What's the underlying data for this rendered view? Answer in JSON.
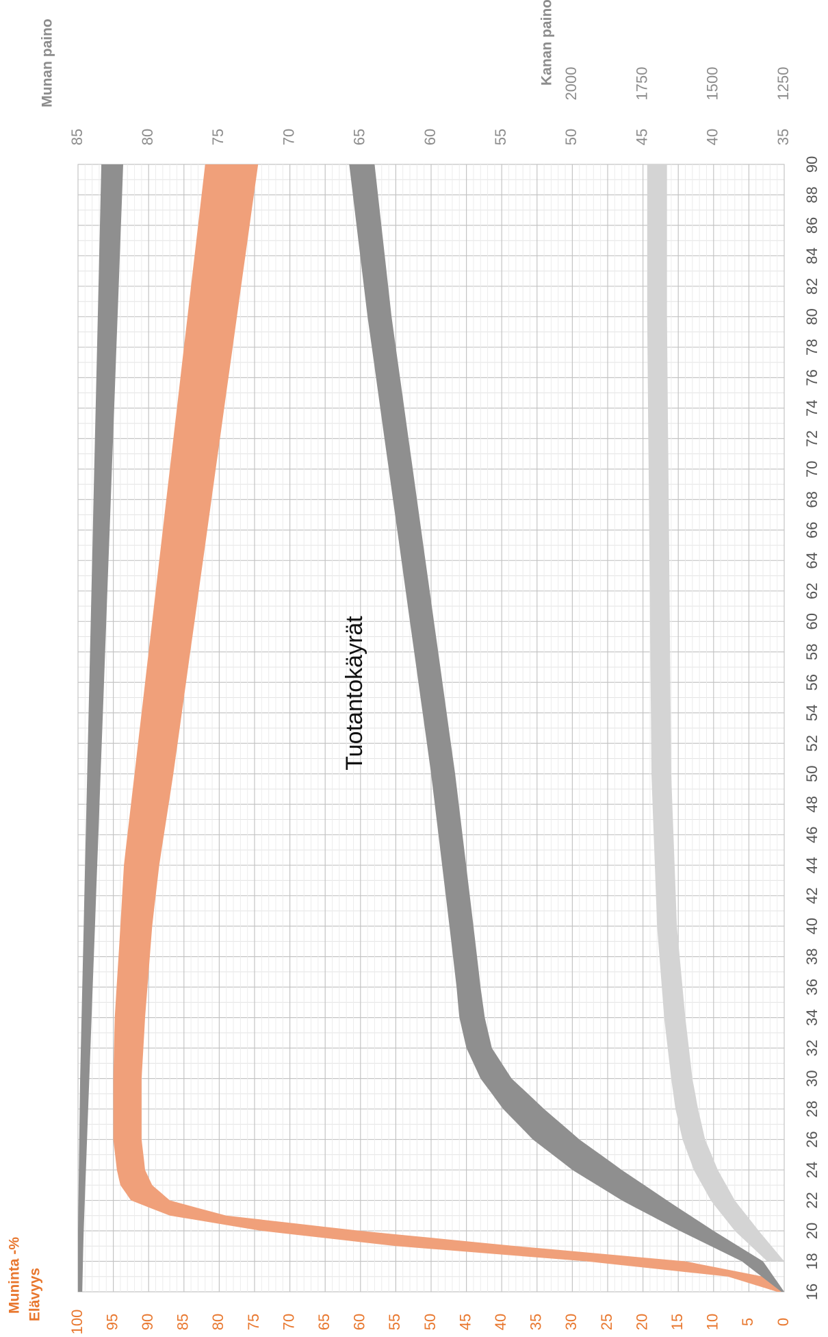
{
  "chart_data": {
    "type": "area",
    "title": "Tuotantokäyrät",
    "x_axis": {
      "ticks": [
        16,
        18,
        20,
        22,
        24,
        26,
        28,
        30,
        32,
        34,
        36,
        38,
        40,
        42,
        44,
        46,
        48,
        50,
        52,
        54,
        56,
        58,
        60,
        62,
        64,
        66,
        68,
        70,
        72,
        74,
        76,
        78,
        80,
        82,
        84,
        86,
        88,
        90
      ],
      "range": [
        16,
        90
      ]
    },
    "left_axis": {
      "labels": [
        "Muninta -%",
        "Elävyys"
      ],
      "ticks": [
        0,
        5,
        10,
        15,
        20,
        25,
        30,
        35,
        40,
        45,
        50,
        55,
        60,
        65,
        70,
        75,
        80,
        85,
        90,
        95,
        100
      ],
      "range": [
        0,
        100
      ]
    },
    "munan_paino_axis": {
      "label": "Munan paino",
      "ticks": [
        35,
        40,
        45,
        50,
        55,
        60,
        65,
        70,
        75,
        80,
        85
      ],
      "range": [
        35,
        85
      ]
    },
    "kanan_paino_axis": {
      "label": "Kanan paino",
      "ticks": [
        1250,
        1500,
        1750,
        2000
      ]
    },
    "colors": {
      "muninta": "#f0a07a",
      "elavyys": "#8f8f8f",
      "munan_paino": "#8f8f8f",
      "kanan_paino": "#d4d4d4",
      "orange_text": "#e8772e",
      "grey_text": "#8c8c8c"
    },
    "bands": [
      {
        "id": "elavyys",
        "x": [
          16,
          20,
          30,
          40,
          50,
          60,
          70,
          80,
          90
        ],
        "low": [
          99.4,
          99.2,
          98.4,
          97.6,
          96.8,
          96.0,
          95.2,
          94.4,
          93.6
        ],
        "high": [
          100,
          100,
          99.7,
          99.2,
          98.7,
          98.2,
          97.7,
          97.2,
          96.7
        ]
      },
      {
        "id": "muninta",
        "x": [
          16,
          17,
          18,
          19,
          20,
          21,
          22,
          23,
          24,
          26,
          30,
          34,
          40,
          44,
          50,
          60,
          70,
          80,
          90
        ],
        "low": [
          0,
          3,
          14,
          38,
          60,
          79,
          87,
          89.5,
          90.5,
          91.0,
          91.0,
          90.5,
          89.5,
          88.5,
          86.5,
          83.5,
          80.5,
          77.5,
          74.5
        ],
        "high": [
          1,
          8,
          28,
          55,
          74,
          87,
          92.5,
          94.0,
          94.5,
          95.0,
          95.0,
          94.8,
          94.0,
          93.5,
          92.0,
          89.5,
          87.0,
          84.5,
          82.0
        ]
      },
      {
        "id": "munan_paino",
        "x": [
          16,
          18,
          20,
          22,
          24,
          26,
          28,
          30,
          32,
          34,
          36,
          40,
          50,
          60,
          70,
          80,
          90
        ],
        "low": [
          35,
          36.5,
          40.0,
          43.3,
          46.5,
          49.5,
          52.0,
          54.3,
          55.7,
          56.2,
          56.5,
          57.0,
          58.3,
          59.8,
          61.3,
          62.8,
          64.0
        ],
        "high": [
          35.2,
          38.0,
          42.4,
          46.5,
          50.0,
          52.8,
          54.9,
          56.5,
          57.5,
          58.0,
          58.2,
          58.7,
          60.0,
          61.5,
          63.0,
          64.5,
          65.8
        ]
      },
      {
        "id": "kanan_paino",
        "x": [
          18,
          20,
          22,
          24,
          26,
          28,
          30,
          34,
          40,
          50,
          60,
          70,
          80,
          90
        ],
        "low": [
          35,
          36.8,
          38.5,
          39.7,
          40.6,
          41.1,
          41.5,
          42.0,
          42.6,
          43.0,
          43.1,
          43.2,
          43.3,
          43.3
        ],
        "high": [
          36.2,
          38.5,
          40.2,
          41.4,
          42.2,
          42.7,
          43.0,
          43.5,
          44.0,
          44.4,
          44.5,
          44.6,
          44.7,
          44.7
        ]
      }
    ]
  }
}
